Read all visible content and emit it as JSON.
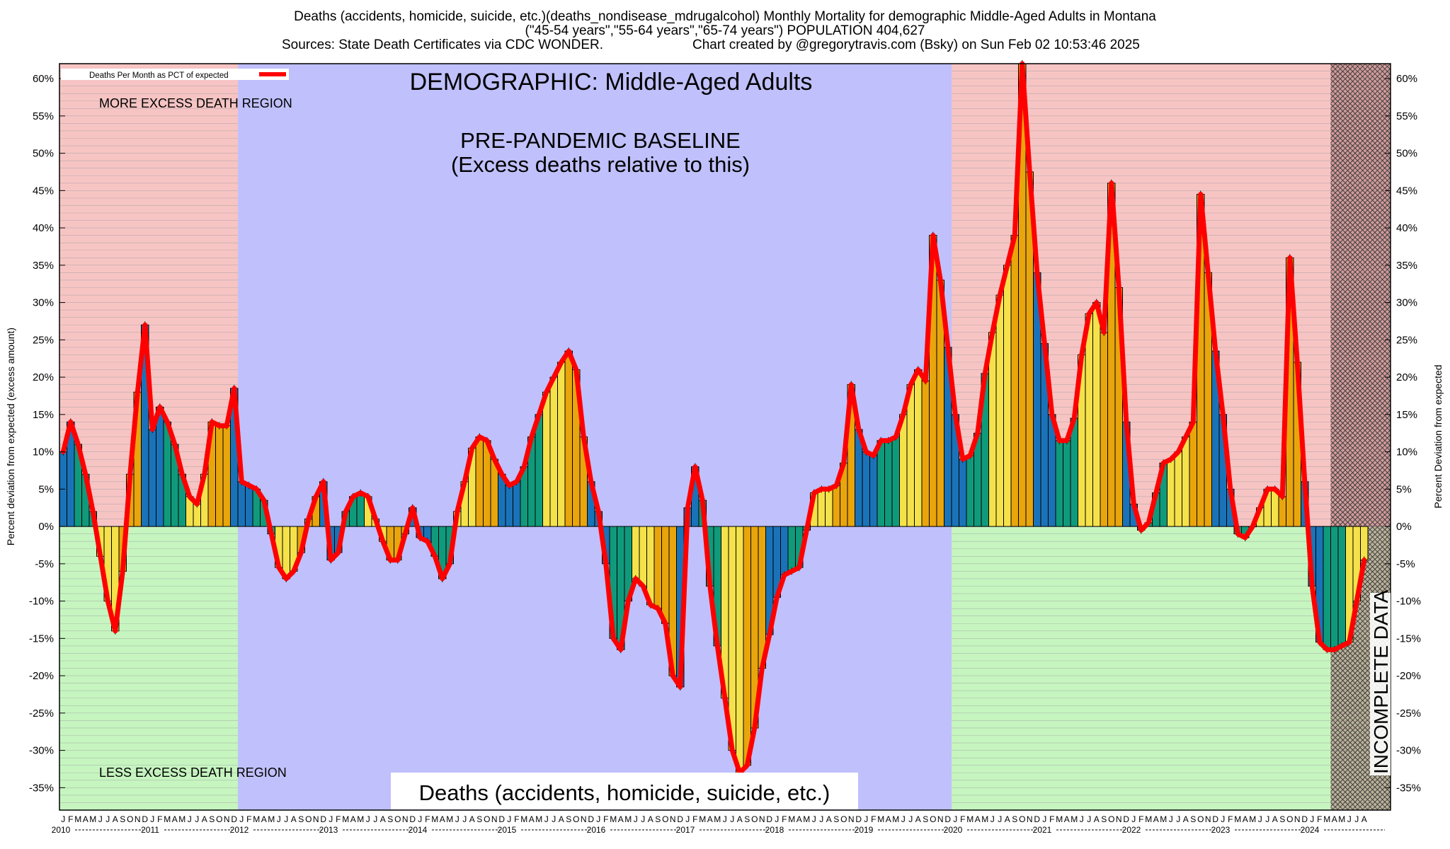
{
  "chart_data": {
    "type": "bar",
    "title_lines": [
      "Deaths (accidents, homicide, suicide, etc.)(deaths_nondisease_mdrugalcohol) Monthly Mortality for demographic Middle-Aged Adults in Montana",
      "(\"45-54 years\",\"55-64 years\",\"65-74 years\") POPULATION 404,627",
      "Sources: State Death Certificates via CDC WONDER.",
      "Chart created by @gregorytravis.com (Bsky) on Sun Feb 02 10:53:46 2025"
    ],
    "ylabel_left": "Percent deviation from expected (excess amount)",
    "ylabel_right": "Percent Deviation from expected",
    "legend_label": "Deaths Per Month as PCT of expected",
    "legend_position": "top-left",
    "annotations": {
      "demographic": "DEMOGRAPHIC: Middle-Aged Adults",
      "baseline_1": "PRE-PANDEMIC BASELINE",
      "baseline_2": "(Excess deaths relative to this)",
      "more_region": "MORE EXCESS DEATH REGION",
      "less_region": "LESS EXCESS DEATH REGION",
      "bottom_title": "Deaths (accidents, homicide, suicide, etc.)",
      "incomplete": "INCOMPLETE DATA"
    },
    "ylim": [
      -38,
      62
    ],
    "yticks": [
      -35,
      -30,
      -25,
      -20,
      -15,
      -10,
      -5,
      0,
      5,
      10,
      15,
      20,
      25,
      30,
      35,
      40,
      45,
      50,
      55,
      60
    ],
    "ytick_suffix": "%",
    "grid": true,
    "start": "2010-01",
    "month_letters": [
      "J",
      "F",
      "M",
      "A",
      "M",
      "J",
      "J",
      "A",
      "S",
      "O",
      "N",
      "D"
    ],
    "years": [
      "2010",
      "2011",
      "2012",
      "2013",
      "2014",
      "2015",
      "2016",
      "2017",
      "2018",
      "2019",
      "2020",
      "2021",
      "2022",
      "2023",
      "2024"
    ],
    "baseline_period": [
      "2012-01",
      "2019-12"
    ],
    "incomplete_from": "2024-04",
    "season_colors": {
      "winter": "#1a73b8",
      "spring": "#109a7c",
      "summer": "#f5e24a",
      "fall": "#e8a50c"
    },
    "line_color": "#ff0000",
    "region_colors": {
      "excess": "#f7c4c4",
      "deficit": "#c6f5c0",
      "baseline": "#c0c0fc"
    },
    "values": [
      10,
      14,
      11,
      7,
      2,
      -4,
      -10,
      -14,
      -6,
      7,
      18,
      27,
      13,
      16,
      14,
      11,
      7,
      4,
      3,
      7,
      14,
      13.5,
      13.5,
      18.5,
      6,
      5.5,
      5,
      3.5,
      -1,
      -5.5,
      -7,
      -6,
      -3.5,
      1,
      4,
      6,
      -4.5,
      -3.5,
      2,
      4,
      4.5,
      4,
      1,
      -2,
      -4.5,
      -4.5,
      -1,
      2.5,
      -1.5,
      -2,
      -4,
      -7,
      -5,
      2,
      6,
      10.5,
      12,
      11.5,
      9,
      7,
      5.5,
      6,
      8,
      12,
      15,
      18,
      20,
      22,
      23.5,
      21,
      12,
      6,
      2,
      -5,
      -15,
      -16.5,
      -10,
      -7,
      -8,
      -10.5,
      -11,
      -13,
      -20,
      -21.5,
      2.5,
      8,
      3.5,
      -8,
      -16,
      -23,
      -30,
      -33,
      -32,
      -27,
      -19,
      -14.5,
      -9.5,
      -6.5,
      -6,
      -5.5,
      -0.5,
      4.5,
      5,
      5,
      5.5,
      8.5,
      19,
      13,
      10,
      9.5,
      11.5,
      11.5,
      12,
      15,
      19,
      21,
      19.5,
      39,
      33,
      24,
      15,
      9,
      9.5,
      12.5,
      20.5,
      26,
      31,
      35,
      39,
      62,
      47.5,
      34,
      24.5,
      15,
      11.5,
      11.5,
      14.5,
      23,
      28.5,
      30,
      26,
      46,
      32,
      14,
      3,
      -0.5,
      0.5,
      4.5,
      8.5,
      9,
      10,
      12,
      14,
      44.5,
      34,
      23.5,
      15,
      5,
      -1,
      -1.5,
      0,
      2.5,
      5,
      5,
      4,
      36,
      22,
      6,
      -8,
      -15.5,
      -16.5,
      -16.5,
      -16,
      -15.5,
      -10,
      -4.5
    ]
  }
}
